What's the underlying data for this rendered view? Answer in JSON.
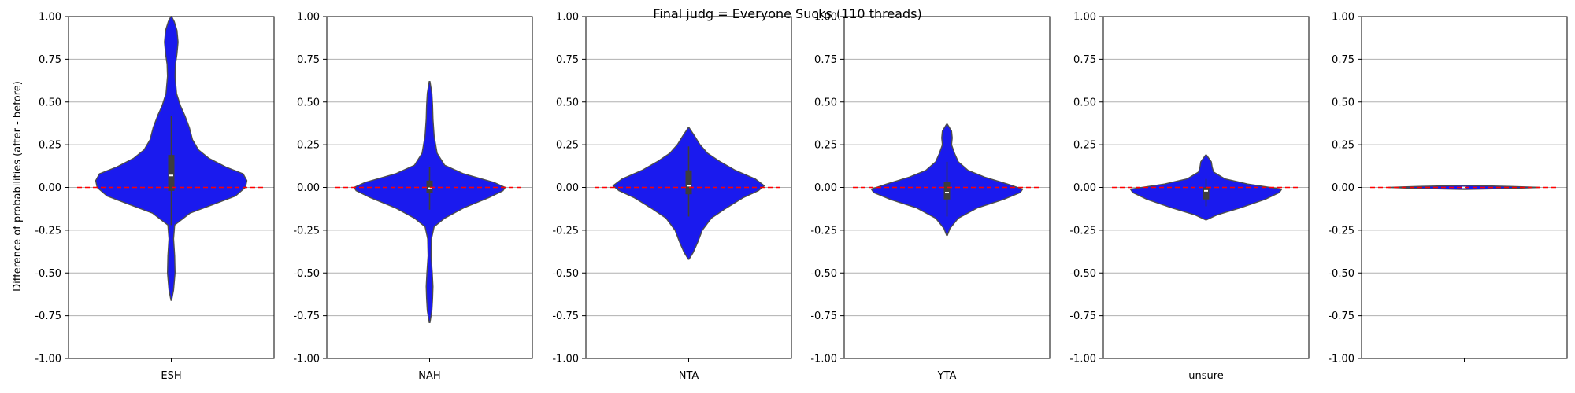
{
  "title": "Final judg = Everyone Sucks (110 threads)",
  "ylabel": "Difference of probabilities (after - before)",
  "colors": {
    "violin_fill": "#1a1aee",
    "violin_edge": "#4d4d4d",
    "box": "#3d3d3d",
    "median": "#ffffff",
    "reference_line": "#ff0000",
    "grid": "#b0b0b0"
  },
  "chart_data": [
    {
      "type": "violin",
      "category": "ESH",
      "ylim": [
        -1.0,
        1.0
      ],
      "yticks": [
        "1.00",
        "0.75",
        "0.50",
        "0.25",
        "0.00",
        "-0.25",
        "-0.50",
        "-0.75",
        "-1.00"
      ],
      "grid": true,
      "reference_y": 0,
      "stats": {
        "median": 0.07,
        "q1": -0.02,
        "q3": 0.19,
        "whisker_low": -0.22,
        "whisker_high": 0.42
      },
      "density": [
        [
          -0.66,
          0.004
        ],
        [
          -0.6,
          0.03
        ],
        [
          -0.5,
          0.05
        ],
        [
          -0.4,
          0.045
        ],
        [
          -0.3,
          0.03
        ],
        [
          -0.22,
          0.045
        ],
        [
          -0.15,
          0.25
        ],
        [
          -0.1,
          0.55
        ],
        [
          -0.05,
          0.85
        ],
        [
          0.0,
          0.98
        ],
        [
          0.04,
          1.0
        ],
        [
          0.08,
          0.95
        ],
        [
          0.12,
          0.72
        ],
        [
          0.17,
          0.5
        ],
        [
          0.22,
          0.36
        ],
        [
          0.28,
          0.28
        ],
        [
          0.35,
          0.24
        ],
        [
          0.42,
          0.18
        ],
        [
          0.48,
          0.12
        ],
        [
          0.55,
          0.07
        ],
        [
          0.65,
          0.05
        ],
        [
          0.72,
          0.055
        ],
        [
          0.78,
          0.075
        ],
        [
          0.85,
          0.09
        ],
        [
          0.92,
          0.075
        ],
        [
          0.97,
          0.04
        ],
        [
          1.0,
          0.005
        ]
      ]
    },
    {
      "type": "violin",
      "category": "NAH",
      "ylim": [
        -1.0,
        1.0
      ],
      "yticks": [
        "1.00",
        "0.75",
        "0.50",
        "0.25",
        "0.00",
        "-0.25",
        "-0.50",
        "-0.75",
        "-1.00"
      ],
      "grid": true,
      "reference_y": 0,
      "stats": {
        "median": -0.005,
        "q1": -0.03,
        "q3": 0.04,
        "whisker_low": -0.13,
        "whisker_high": 0.12
      },
      "density": [
        [
          -0.79,
          0.005
        ],
        [
          -0.72,
          0.03
        ],
        [
          -0.65,
          0.04
        ],
        [
          -0.58,
          0.045
        ],
        [
          -0.5,
          0.035
        ],
        [
          -0.4,
          0.02
        ],
        [
          -0.3,
          0.025
        ],
        [
          -0.23,
          0.06
        ],
        [
          -0.18,
          0.2
        ],
        [
          -0.12,
          0.45
        ],
        [
          -0.06,
          0.78
        ],
        [
          -0.02,
          0.97
        ],
        [
          0.0,
          1.0
        ],
        [
          0.03,
          0.85
        ],
        [
          0.08,
          0.45
        ],
        [
          0.13,
          0.2
        ],
        [
          0.2,
          0.1
        ],
        [
          0.3,
          0.06
        ],
        [
          0.4,
          0.045
        ],
        [
          0.48,
          0.04
        ],
        [
          0.55,
          0.03
        ],
        [
          0.62,
          0.005
        ]
      ]
    },
    {
      "type": "violin",
      "category": "NTA",
      "ylim": [
        -1.0,
        1.0
      ],
      "yticks": [
        "1.00",
        "0.75",
        "0.50",
        "0.25",
        "0.00",
        "-0.25",
        "-0.50",
        "-0.75",
        "-1.00"
      ],
      "grid": true,
      "reference_y": 0,
      "stats": {
        "median": 0.01,
        "q1": -0.04,
        "q3": 0.1,
        "whisker_low": -0.17,
        "whisker_high": 0.24
      },
      "density": [
        [
          -0.42,
          0.005
        ],
        [
          -0.38,
          0.06
        ],
        [
          -0.32,
          0.12
        ],
        [
          -0.25,
          0.18
        ],
        [
          -0.18,
          0.3
        ],
        [
          -0.12,
          0.5
        ],
        [
          -0.06,
          0.72
        ],
        [
          -0.02,
          0.92
        ],
        [
          0.01,
          1.0
        ],
        [
          0.05,
          0.88
        ],
        [
          0.1,
          0.62
        ],
        [
          0.15,
          0.42
        ],
        [
          0.2,
          0.25
        ],
        [
          0.25,
          0.15
        ],
        [
          0.3,
          0.08
        ],
        [
          0.35,
          0.005
        ]
      ]
    },
    {
      "type": "violin",
      "category": "YTA",
      "ylim": [
        -1.0,
        1.0
      ],
      "yticks": [
        "1.00",
        "0.75",
        "0.50",
        "0.25",
        "0.00",
        "-0.25",
        "-0.50",
        "-0.75",
        "-1.00"
      ],
      "grid": true,
      "reference_y": 0,
      "stats": {
        "median": -0.03,
        "q1": -0.07,
        "q3": 0.03,
        "whisker_low": -0.17,
        "whisker_high": 0.15
      },
      "density": [
        [
          -0.28,
          0.005
        ],
        [
          -0.24,
          0.04
        ],
        [
          -0.18,
          0.15
        ],
        [
          -0.12,
          0.4
        ],
        [
          -0.07,
          0.75
        ],
        [
          -0.03,
          0.97
        ],
        [
          -0.01,
          1.0
        ],
        [
          0.02,
          0.8
        ],
        [
          0.06,
          0.5
        ],
        [
          0.1,
          0.28
        ],
        [
          0.15,
          0.15
        ],
        [
          0.2,
          0.1
        ],
        [
          0.25,
          0.06
        ],
        [
          0.29,
          0.07
        ],
        [
          0.33,
          0.06
        ],
        [
          0.37,
          0.005
        ]
      ]
    },
    {
      "type": "violin",
      "category": "unsure",
      "ylim": [
        -1.0,
        1.0
      ],
      "yticks": [
        "1.00",
        "0.75",
        "0.50",
        "0.25",
        "0.00",
        "-0.25",
        "-0.50",
        "-0.75",
        "-1.00"
      ],
      "grid": true,
      "reference_y": 0,
      "stats": {
        "median": -0.02,
        "q1": -0.07,
        "q3": 0.0,
        "whisker_low": -0.11,
        "whisker_high": 0.05
      },
      "density": [
        [
          -0.19,
          0.005
        ],
        [
          -0.16,
          0.15
        ],
        [
          -0.12,
          0.45
        ],
        [
          -0.07,
          0.78
        ],
        [
          -0.03,
          0.97
        ],
        [
          -0.01,
          1.0
        ],
        [
          0.02,
          0.55
        ],
        [
          0.05,
          0.25
        ],
        [
          0.09,
          0.1
        ],
        [
          0.12,
          0.08
        ],
        [
          0.15,
          0.07
        ],
        [
          0.19,
          0.005
        ]
      ]
    },
    {
      "type": "violin",
      "category": "",
      "ylim": [
        -1.0,
        1.0
      ],
      "yticks": [
        "1.00",
        "0.75",
        "0.50",
        "0.25",
        "0.00",
        "-0.25",
        "-0.50",
        "-0.75",
        "-1.00"
      ],
      "grid": true,
      "reference_y": 0,
      "stats": {
        "median": 0.0,
        "q1": -0.003,
        "q3": 0.003,
        "whisker_low": -0.008,
        "whisker_high": 0.008
      },
      "density": [
        [
          -0.012,
          0.005
        ],
        [
          -0.006,
          0.6
        ],
        [
          0.0,
          1.0
        ],
        [
          0.006,
          0.6
        ],
        [
          0.012,
          0.005
        ]
      ]
    }
  ]
}
